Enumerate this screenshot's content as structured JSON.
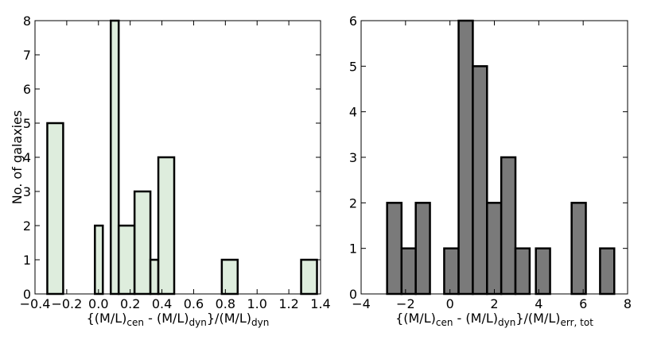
{
  "chart_data": [
    {
      "type": "bar",
      "panel": "left",
      "ylabel": "No. of galaxies",
      "xlabel": {
        "parts": [
          {
            "t": "{(M/L)",
            "sub": false
          },
          {
            "t": "cen",
            "sub": true
          },
          {
            "t": " - (M/L)",
            "sub": false
          },
          {
            "t": "dyn",
            "sub": true
          },
          {
            "t": "}/(M/L)",
            "sub": false
          },
          {
            "t": "dyn",
            "sub": true
          }
        ]
      },
      "xlim": [
        -0.4,
        1.4
      ],
      "ylim": [
        0,
        8
      ],
      "xticks": [
        -0.4,
        -0.2,
        0.0,
        0.2,
        0.4,
        0.6,
        0.8,
        1.0,
        1.2,
        1.4
      ],
      "xtick_labels": [
        "−0.4",
        "−0.2",
        "0.0",
        "0.2",
        "0.4",
        "0.6",
        "0.8",
        "1.0",
        "1.2",
        "1.4"
      ],
      "yticks": [
        0,
        1,
        2,
        3,
        4,
        5,
        6,
        7,
        8
      ],
      "ytick_labels": [
        "0",
        "1",
        "2",
        "3",
        "4",
        "5",
        "6",
        "7",
        "8"
      ],
      "bars": [
        {
          "x0": -0.3225,
          "x1": -0.2225,
          "y": 5
        },
        {
          "x0": -0.0225,
          "x1": 0.0275,
          "y": 2
        },
        {
          "x0": 0.0275,
          "x1": 0.0775,
          "y": 0
        },
        {
          "x0": 0.0775,
          "x1": 0.1275,
          "y": 8
        },
        {
          "x0": 0.1275,
          "x1": 0.2275,
          "y": 2
        },
        {
          "x0": 0.2275,
          "x1": 0.3275,
          "y": 3
        },
        {
          "x0": 0.3275,
          "x1": 0.3775,
          "y": 1
        },
        {
          "x0": 0.3775,
          "x1": 0.4775,
          "y": 4
        },
        {
          "x0": 0.7775,
          "x1": 0.8775,
          "y": 1
        },
        {
          "x0": 1.2775,
          "x1": 1.3775,
          "y": 1
        }
      ],
      "colors": {
        "fill": "#deeddd",
        "edge": "#000000"
      }
    },
    {
      "type": "bar",
      "panel": "right",
      "ylabel": "",
      "xlabel": {
        "parts": [
          {
            "t": "{(M/L)",
            "sub": false
          },
          {
            "t": "cen",
            "sub": true
          },
          {
            "t": " - (M/L)",
            "sub": false
          },
          {
            "t": "dyn",
            "sub": true
          },
          {
            "t": "}/(M/L)",
            "sub": false
          },
          {
            "t": "err, tot",
            "sub": true
          }
        ]
      },
      "xlim": [
        -4,
        8
      ],
      "ylim": [
        0,
        6
      ],
      "xticks": [
        -4,
        -2,
        0,
        2,
        4,
        6,
        8
      ],
      "xtick_labels": [
        "−4",
        "−2",
        "0",
        "2",
        "4",
        "6",
        "8"
      ],
      "yticks": [
        0,
        1,
        2,
        3,
        4,
        5,
        6
      ],
      "ytick_labels": [
        "0",
        "1",
        "2",
        "3",
        "4",
        "5",
        "6"
      ],
      "bars": [
        {
          "x0": -2.83,
          "x1": -2.18,
          "y": 2
        },
        {
          "x0": -2.18,
          "x1": -1.54,
          "y": 1
        },
        {
          "x0": -1.54,
          "x1": -0.9,
          "y": 2
        },
        {
          "x0": -0.26,
          "x1": 0.39,
          "y": 1
        },
        {
          "x0": 0.39,
          "x1": 1.03,
          "y": 6
        },
        {
          "x0": 1.03,
          "x1": 1.67,
          "y": 5
        },
        {
          "x0": 1.67,
          "x1": 2.31,
          "y": 2
        },
        {
          "x0": 2.31,
          "x1": 2.95,
          "y": 3
        },
        {
          "x0": 2.95,
          "x1": 3.59,
          "y": 1
        },
        {
          "x0": 3.87,
          "x1": 4.51,
          "y": 1
        },
        {
          "x0": 5.48,
          "x1": 6.12,
          "y": 2
        },
        {
          "x0": 6.76,
          "x1": 7.4,
          "y": 1
        }
      ],
      "colors": {
        "fill": "#7a7a7a",
        "edge": "#000000"
      }
    }
  ]
}
